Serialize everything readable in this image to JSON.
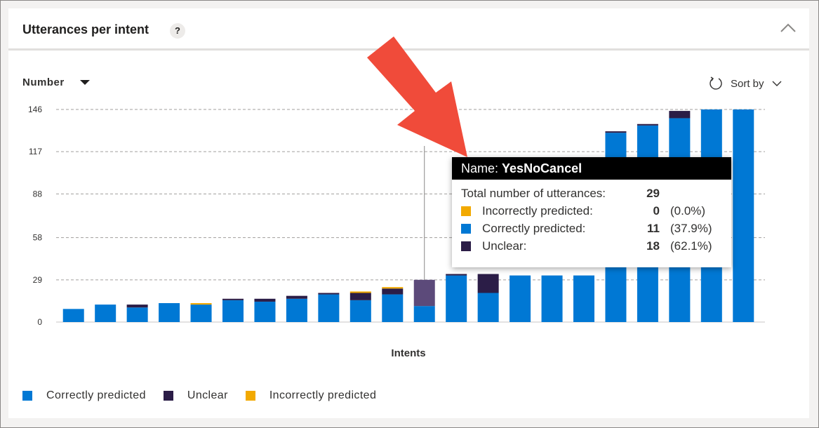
{
  "card": {
    "title": "Utterances per intent",
    "help_label": "?"
  },
  "controls": {
    "metric_label": "Number",
    "sort_label": "Sort by"
  },
  "colors": {
    "correct": "#0078d4",
    "unclear": "#2b1d47",
    "incorrect": "#f2a900",
    "grid": "#a19f9d",
    "arrow": "#f04b3a"
  },
  "chart_data": {
    "type": "bar",
    "stacked": true,
    "categories": [
      "",
      "",
      "",
      "",
      "",
      "",
      "",
      "",
      "",
      "",
      "",
      "",
      "",
      "",
      "",
      "",
      "",
      "",
      "",
      "",
      "",
      ""
    ],
    "series": [
      {
        "name": "Correctly predicted",
        "values": [
          9,
          12,
          10,
          13,
          12,
          15,
          14,
          16,
          19,
          15,
          19,
          11,
          32,
          20,
          32,
          32,
          32,
          130,
          135,
          140,
          146,
          146
        ]
      },
      {
        "name": "Unclear",
        "values": [
          0,
          0,
          2,
          0,
          0,
          1,
          2,
          2,
          1,
          5,
          4,
          18,
          1,
          13,
          0,
          0,
          0,
          1,
          1,
          5,
          0,
          0
        ]
      },
      {
        "name": "Incorrectly predicted",
        "values": [
          0,
          0,
          0,
          0,
          1,
          0,
          0,
          0,
          0,
          1,
          1,
          0,
          0,
          0,
          0,
          0,
          0,
          0,
          0,
          0,
          0,
          0
        ]
      }
    ],
    "highlight_index": 11,
    "yticks": [
      "0",
      "29",
      "58",
      "88",
      "117",
      "146"
    ],
    "ylim": [
      0,
      146
    ],
    "xlabel": "Intents",
    "ylabel": "",
    "grid": true
  },
  "legend": [
    {
      "label": "Correctly predicted",
      "color": "#0078d4"
    },
    {
      "label": "Unclear",
      "color": "#2b1d47"
    },
    {
      "label": "Incorrectly predicted",
      "color": "#f2a900"
    }
  ],
  "tooltip": {
    "name_prefix": "Name:",
    "name": "YesNoCancel",
    "total_label": "Total number of utterances:",
    "total_value": "29",
    "rows": [
      {
        "label": "Incorrectly predicted:",
        "value": "0",
        "pct": "(0.0%)",
        "color": "#f2a900"
      },
      {
        "label": "Correctly predicted:",
        "value": "11",
        "pct": "(37.9%)",
        "color": "#0078d4"
      },
      {
        "label": "Unclear:",
        "value": "18",
        "pct": "(62.1%)",
        "color": "#2b1d47"
      }
    ]
  }
}
